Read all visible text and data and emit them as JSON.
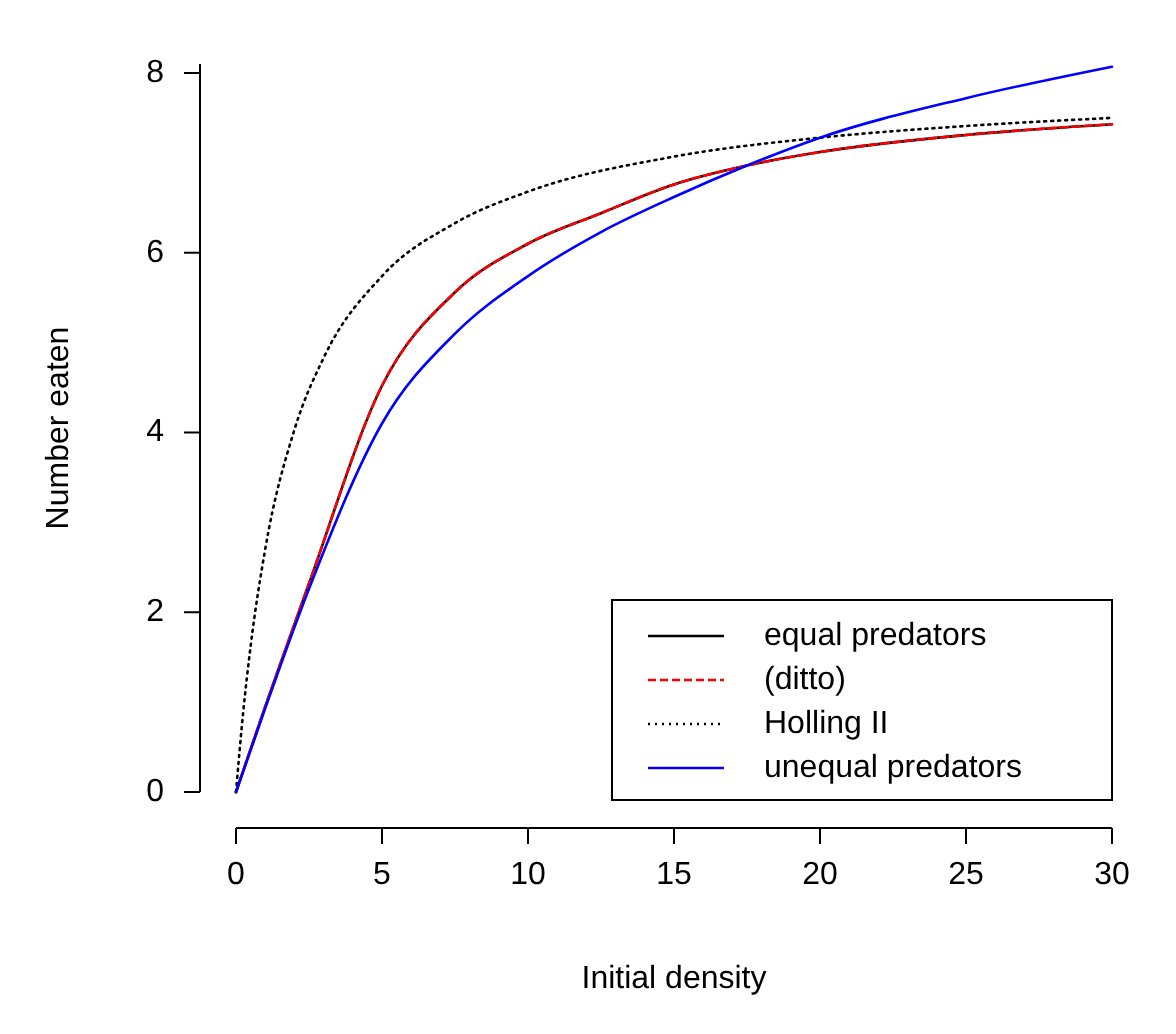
{
  "chart_data": {
    "type": "line",
    "xlabel": "Initial density",
    "ylabel": "Number eaten",
    "xlim": [
      0,
      30
    ],
    "ylim": [
      0,
      8.1
    ],
    "xticks": [
      0,
      5,
      10,
      15,
      20,
      25,
      30
    ],
    "yticks": [
      0,
      2,
      4,
      6,
      8
    ],
    "legend": "bottom right",
    "grid": false,
    "series": [
      {
        "name": "equal predators",
        "color": "#000000",
        "line_style": "solid",
        "x": [
          0,
          1,
          2.5,
          5,
          7.5,
          10,
          12.5,
          15,
          17.5,
          20,
          25,
          30
        ],
        "values": [
          0,
          0.95,
          2.32,
          4.52,
          5.56,
          6.1,
          6.44,
          6.76,
          6.97,
          7.12,
          7.31,
          7.43
        ]
      },
      {
        "name": "(ditto)",
        "color": "#ff0000",
        "line_style": "dashed",
        "x": [
          0,
          1,
          2.5,
          5,
          7.5,
          10,
          12.5,
          15,
          17.5,
          20,
          25,
          30
        ],
        "values": [
          0,
          0.95,
          2.32,
          4.52,
          5.56,
          6.1,
          6.44,
          6.76,
          6.97,
          7.12,
          7.31,
          7.43
        ]
      },
      {
        "name": "Holling II",
        "color": "#000000",
        "line_style": "dotted",
        "x": [
          0,
          0.25,
          0.5,
          1,
          2,
          3,
          5,
          7.5,
          10,
          15,
          20,
          25,
          30
        ],
        "values": [
          0,
          0.9,
          1.62,
          2.7,
          4.03,
          4.83,
          5.74,
          6.33,
          6.68,
          7.07,
          7.28,
          7.41,
          7.5
        ]
      },
      {
        "name": "unequal predators",
        "color": "#0000ff",
        "line_style": "solid",
        "x": [
          0,
          1,
          2.5,
          5,
          7.5,
          10,
          12.5,
          15,
          17.5,
          20,
          25,
          30
        ],
        "values": [
          0,
          0.93,
          2.26,
          4.1,
          5.1,
          5.74,
          6.23,
          6.62,
          6.97,
          7.28,
          7.72,
          8.07
        ]
      }
    ]
  }
}
